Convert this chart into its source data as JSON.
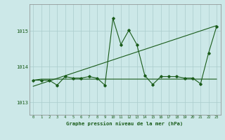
{
  "title": "Graphe pression niveau de la mer (hPa)",
  "x_ticks": [
    0,
    1,
    2,
    3,
    4,
    5,
    6,
    7,
    8,
    9,
    10,
    11,
    12,
    13,
    14,
    15,
    16,
    17,
    18,
    19,
    20,
    21,
    22,
    23
  ],
  "ylim": [
    1012.65,
    1015.75
  ],
  "yticks": [
    1013,
    1014,
    1015
  ],
  "background_color": "#cce8e8",
  "grid_color": "#aacccc",
  "line_color": "#1a5c1a",
  "series1": [
    1013.62,
    1013.62,
    1013.62,
    1013.48,
    1013.72,
    1013.68,
    1013.68,
    1013.72,
    1013.68,
    1013.48,
    1015.35,
    1014.62,
    1015.02,
    1014.62,
    1013.75,
    1013.5,
    1013.72,
    1013.72,
    1013.72,
    1013.68,
    1013.68,
    1013.52,
    1014.38,
    1015.12
  ],
  "series2": [
    1013.62,
    1013.65,
    1013.65,
    1013.65,
    1013.65,
    1013.65,
    1013.65,
    1013.65,
    1013.65,
    1013.65,
    1013.65,
    1013.65,
    1013.65,
    1013.65,
    1013.65,
    1013.65,
    1013.65,
    1013.65,
    1013.65,
    1013.65,
    1013.65,
    1013.65,
    1013.65,
    1013.65
  ],
  "trend_x": [
    0,
    23
  ],
  "trend_y": [
    1013.45,
    1015.15
  ]
}
